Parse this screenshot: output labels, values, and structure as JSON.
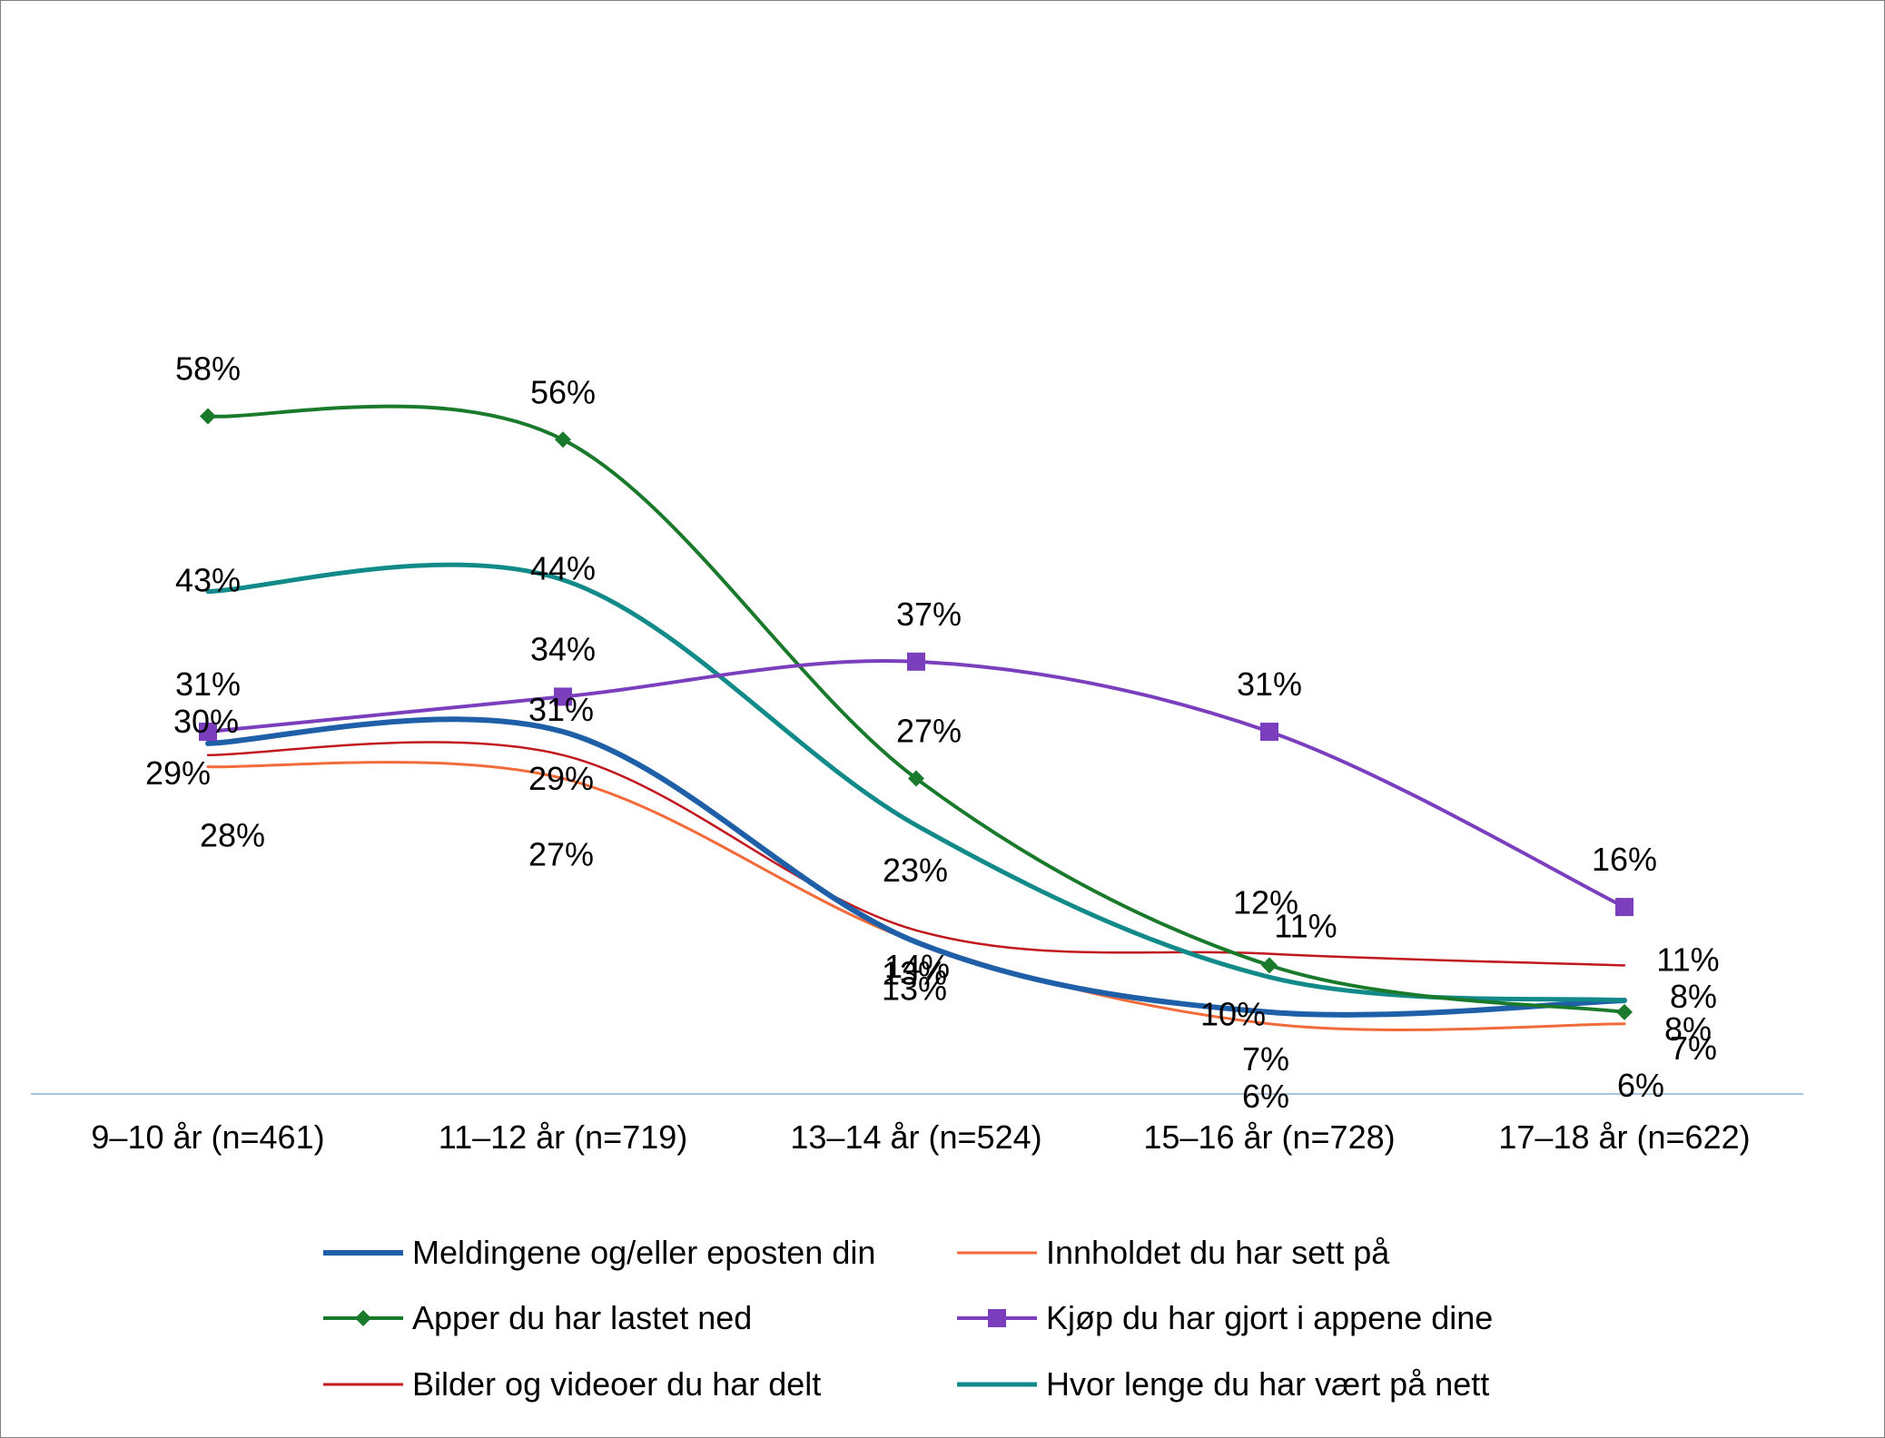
{
  "chart_data": {
    "type": "line",
    "title": "",
    "xlabel": "",
    "ylabel": "",
    "ylim": [
      0,
      100
    ],
    "grid": false,
    "legend_position": "bottom",
    "categories": [
      "9–10 år (n=461)",
      "11–12 år (n=719)",
      "13–14 år (n=524)",
      "15–16 år (n=728)",
      "17–18 år (n=622)"
    ],
    "series": [
      {
        "name": "Meldingene og/eller eposten din",
        "color": "#1f5fa8",
        "width": 6,
        "marker": "none",
        "values": [
          30,
          31,
          13,
          7,
          8
        ],
        "labels": [
          "30%",
          "31%",
          "13%",
          "7%",
          "8%"
        ]
      },
      {
        "name": "Innholdet du har sett på",
        "color": "#f26b3a",
        "width": 3,
        "marker": "none",
        "values": [
          28,
          27,
          13,
          6,
          6
        ],
        "labels": [
          "28%",
          "27%",
          "13%",
          "6%",
          "6%"
        ]
      },
      {
        "name": "Apper du har lastet ned",
        "color": "#1a7a2b",
        "width": 4,
        "marker": "diamond",
        "values": [
          58,
          56,
          27,
          11,
          7
        ],
        "labels": [
          "58%",
          "56%",
          "27%",
          "11%",
          "7%"
        ]
      },
      {
        "name": "Kjøp du har gjort i appene dine",
        "color": "#7b3fbe",
        "width": 4,
        "marker": "square",
        "values": [
          31,
          34,
          37,
          31,
          16
        ],
        "labels": [
          "31%",
          "34%",
          "37%",
          "31%",
          "16%"
        ]
      },
      {
        "name": "Bilder og videoer du har delt",
        "color": "#c0181e",
        "width": 2.5,
        "marker": "none",
        "values": [
          29,
          29,
          14,
          12,
          11
        ],
        "labels": [
          "29%",
          "29%",
          "14%",
          "12%",
          "11%"
        ]
      },
      {
        "name": "Hvor lenge du har vært på nett",
        "color": "#138a8a",
        "width": 5,
        "marker": "none",
        "values": [
          43,
          44,
          23,
          10,
          8
        ],
        "labels": [
          "43%",
          "44%",
          "23%",
          "10%",
          "8%"
        ]
      }
    ]
  }
}
